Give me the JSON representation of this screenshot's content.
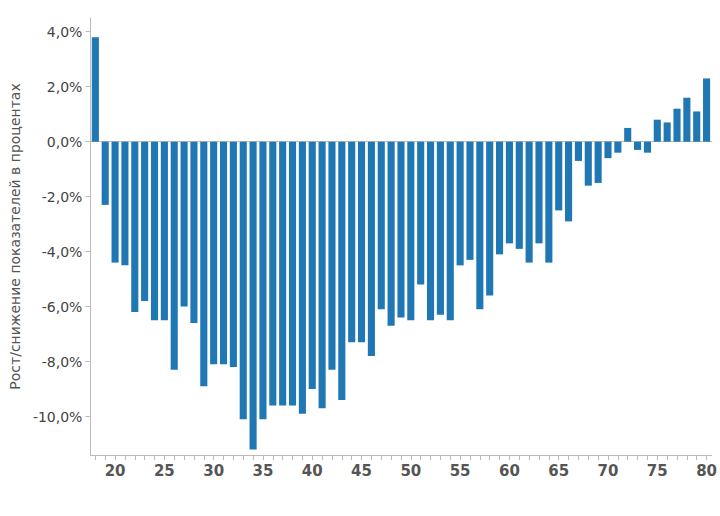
{
  "chart_data": {
    "type": "bar",
    "y_label": "Рост/снижение показателей в процентах",
    "categories": [
      null,
      null,
      20,
      null,
      null,
      null,
      null,
      25,
      null,
      null,
      null,
      null,
      30,
      null,
      null,
      null,
      null,
      35,
      null,
      null,
      null,
      null,
      40,
      null,
      null,
      null,
      null,
      45,
      null,
      null,
      null,
      null,
      50,
      null,
      null,
      null,
      null,
      55,
      null,
      null,
      null,
      null,
      60,
      null,
      null,
      null,
      null,
      65,
      null,
      null,
      null,
      null,
      70,
      null,
      null,
      null,
      null,
      75,
      null,
      null,
      null,
      null,
      80
    ],
    "values": [
      3.8,
      -2.3,
      -4.4,
      -4.5,
      -6.2,
      -5.8,
      -6.5,
      -6.5,
      -8.3,
      -6.0,
      -6.6,
      -8.9,
      -8.1,
      -8.1,
      -8.2,
      -10.1,
      -11.2,
      -10.1,
      -9.6,
      -9.6,
      -9.6,
      -9.9,
      -9.0,
      -9.7,
      -8.3,
      -9.4,
      -7.3,
      -7.3,
      -7.8,
      -6.1,
      -6.7,
      -6.4,
      -6.5,
      -5.2,
      -6.5,
      -6.3,
      -6.5,
      -4.5,
      -4.3,
      -6.1,
      -5.6,
      -4.1,
      -3.7,
      -3.9,
      -4.4,
      -3.7,
      -4.4,
      -2.5,
      -2.9,
      -0.7,
      -1.6,
      -1.5,
      -0.6,
      -0.4,
      0.5,
      -0.3,
      -0.4,
      0.8,
      0.7,
      1.2,
      1.6,
      1.1,
      2.3
    ],
    "color": "#1f77b4",
    "ylim": [
      -11.4,
      4.5
    ],
    "yticks": [
      {
        "value": -10,
        "label": "-10,0%"
      },
      {
        "value": -8,
        "label": "-8,0%"
      },
      {
        "value": -6,
        "label": "-6,0%"
      },
      {
        "value": -4,
        "label": "-4,0%"
      },
      {
        "value": -2,
        "label": "-2,0%"
      },
      {
        "value": 0,
        "label": "0,0%"
      },
      {
        "value": 2,
        "label": "2,0%"
      },
      {
        "value": 4,
        "label": "4,0%"
      }
    ],
    "grid": false
  }
}
